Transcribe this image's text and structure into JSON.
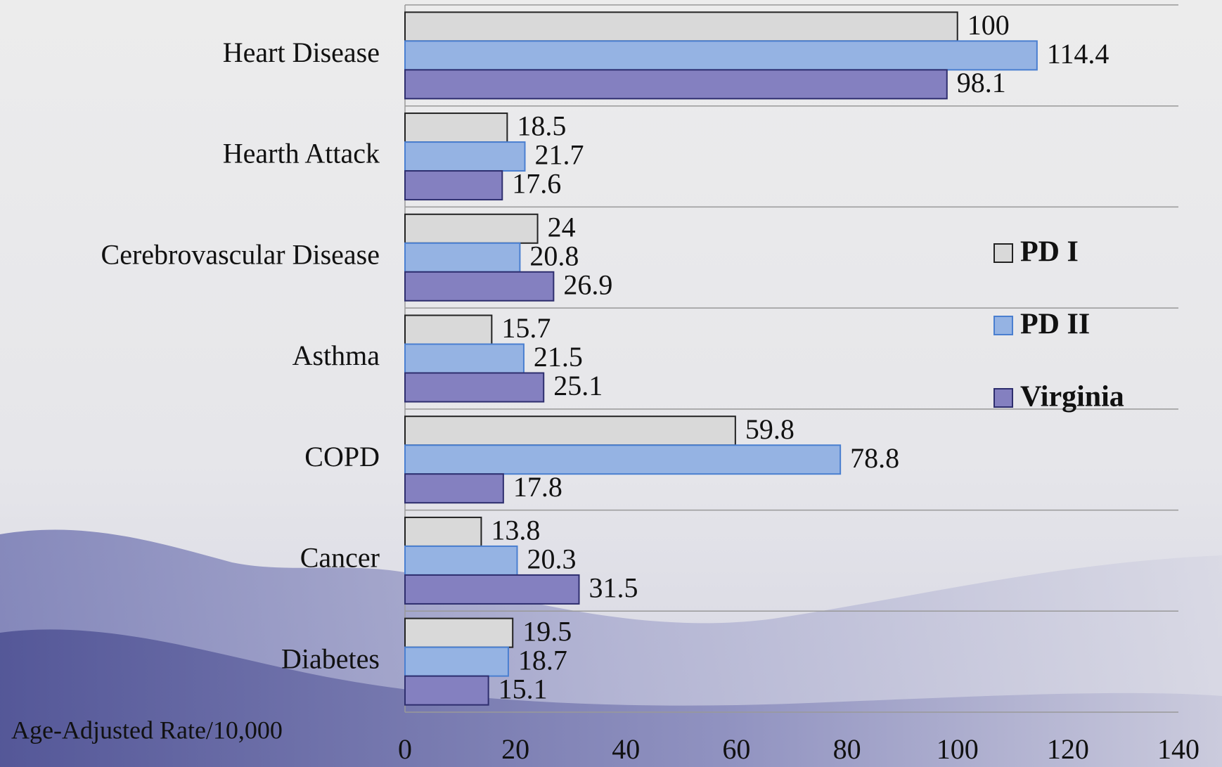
{
  "chart_data": {
    "type": "bar",
    "orientation": "horizontal",
    "x_axis_label": "Age-Adjusted Rate/10,000",
    "categories": [
      "Heart Disease",
      "Hearth Attack",
      "Cerebrovascular Disease",
      "Asthma",
      "COPD",
      "Cancer",
      "Diabetes"
    ],
    "series": [
      {
        "name": "PD I",
        "color": "#d9d9d9",
        "values": [
          100,
          18.5,
          24,
          15.7,
          59.8,
          13.8,
          19.5
        ]
      },
      {
        "name": "PD II",
        "color": "#95b3e3",
        "values": [
          114.4,
          21.7,
          20.8,
          21.5,
          78.8,
          20.3,
          18.7
        ]
      },
      {
        "name": "Virginia",
        "color": "#8480c0",
        "values": [
          98.1,
          17.6,
          26.9,
          25.1,
          17.8,
          31.5,
          15.1
        ]
      }
    ],
    "xlim": [
      0,
      140
    ],
    "xticks": [
      0,
      20,
      40,
      60,
      80,
      100,
      120,
      140
    ],
    "legend": "right",
    "data_labels": true
  }
}
